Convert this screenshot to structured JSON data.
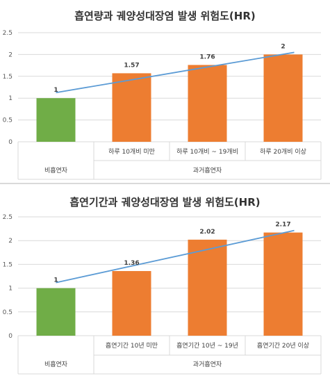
{
  "charts": [
    {
      "type": "bar",
      "title": "흡연량과 궤양성대장염 발생 위험도(HR)",
      "categories": [
        "",
        "하루 10개비 미만",
        "하루 10개비 ~ 19개비",
        "하루 20개비 이상"
      ],
      "groups": [
        "비흡연자",
        "과거흡연자"
      ],
      "values": [
        1,
        1.57,
        1.76,
        2
      ],
      "data_labels": [
        "1",
        "1.57",
        "1.76",
        "2"
      ],
      "ylim": [
        0,
        2.5
      ],
      "yticks": [
        "0",
        "0.5",
        "1",
        "1.5",
        "2",
        "2.5"
      ],
      "trend_line": true,
      "colors": {
        "reference_bar": "#70ad47",
        "bar": "#ed7d31",
        "trend": "#5b9bd5",
        "grid": "#d9d9d9"
      }
    },
    {
      "type": "bar",
      "title": "흡연기간과 궤양성대장염 발생 위험도(HR)",
      "categories": [
        "",
        "흡연기간 10년 미만",
        "흡연기간 10년 ~ 19년",
        "흡연기간 20년 이상"
      ],
      "groups": [
        "비흡연자",
        "과거흡연자"
      ],
      "values": [
        1,
        1.36,
        2.02,
        2.17
      ],
      "data_labels": [
        "1",
        "1.36",
        "2.02",
        "2.17"
      ],
      "ylim": [
        0,
        2.5
      ],
      "yticks": [
        "0",
        "0.5",
        "1",
        "1.5",
        "2",
        "2.5"
      ],
      "trend_line": true,
      "colors": {
        "reference_bar": "#70ad47",
        "bar": "#ed7d31",
        "trend": "#5b9bd5",
        "grid": "#d9d9d9"
      }
    }
  ]
}
